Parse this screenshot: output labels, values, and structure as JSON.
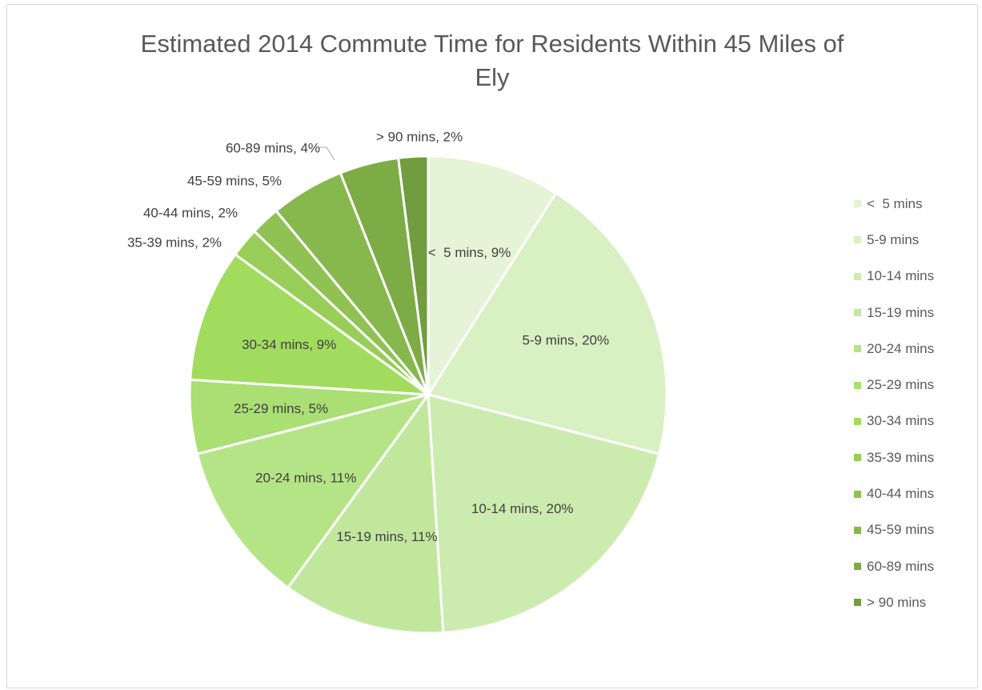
{
  "chart_data": {
    "type": "pie",
    "title": "Estimated 2014 Commute Time for Residents Within 45 Miles of Ely",
    "legend_position": "right",
    "slices": [
      {
        "name": "<  5 mins",
        "value": 9,
        "label": "<  5 mins, 9%",
        "color": "#e5f3d6"
      },
      {
        "name": "5-9 mins",
        "value": 20,
        "label": "5-9 mins, 20%",
        "color": "#d8f0c2"
      },
      {
        "name": "10-14 mins",
        "value": 20,
        "label": "10-14 mins, 20%",
        "color": "#ccebae"
      },
      {
        "name": "15-19 mins",
        "value": 11,
        "label": "15-19 mins, 11%",
        "color": "#c1e79d"
      },
      {
        "name": "20-24 mins",
        "value": 11,
        "label": "20-24 mins, 11%",
        "color": "#b5e487"
      },
      {
        "name": "25-29 mins",
        "value": 5,
        "label": "25-29 mins, 5%",
        "color": "#a9df73"
      },
      {
        "name": "30-34 mins",
        "value": 9,
        "label": "30-34 mins, 9%",
        "color": "#a2dc5e"
      },
      {
        "name": "35-39 mins",
        "value": 2,
        "label": "35-39 mins, 2%",
        "color": "#98ce58"
      },
      {
        "name": "40-44 mins",
        "value": 2,
        "label": "40-44 mins, 2%",
        "color": "#8fc252"
      },
      {
        "name": "45-59 mins",
        "value": 5,
        "label": "45-59 mins, 5%",
        "color": "#86b84d"
      },
      {
        "name": "60-89 mins",
        "value": 4,
        "label": "60-89 mins, 4%",
        "color": "#7dab46"
      },
      {
        "name": "> 90 mins",
        "value": 2,
        "label": "> 90 mins, 2%",
        "color": "#719d3e"
      }
    ]
  }
}
